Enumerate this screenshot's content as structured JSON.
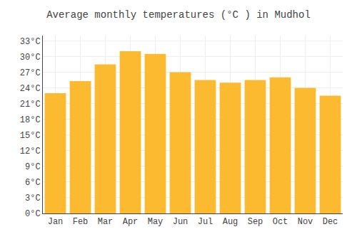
{
  "chart_data": {
    "type": "bar",
    "title": "Average monthly temperatures (°C ) in Mudhol",
    "categories": [
      "Jan",
      "Feb",
      "Mar",
      "Apr",
      "May",
      "Jun",
      "Jul",
      "Aug",
      "Sep",
      "Oct",
      "Nov",
      "Dec"
    ],
    "values": [
      23.0,
      25.3,
      28.5,
      31.0,
      30.5,
      27.0,
      25.5,
      25.0,
      25.5,
      26.0,
      24.0,
      22.5
    ],
    "color": "#FCBA30",
    "ylim": [
      0,
      34
    ],
    "yticks": [
      {
        "value": 0,
        "label": "0°C"
      },
      {
        "value": 3,
        "label": "3°C"
      },
      {
        "value": 6,
        "label": "6°C"
      },
      {
        "value": 9,
        "label": "9°C"
      },
      {
        "value": 12,
        "label": "12°C"
      },
      {
        "value": 15,
        "label": "15°C"
      },
      {
        "value": 18,
        "label": "18°C"
      },
      {
        "value": 21,
        "label": "21°C"
      },
      {
        "value": 24,
        "label": "24°C"
      },
      {
        "value": 27,
        "label": "27°C"
      },
      {
        "value": 30,
        "label": "30°C"
      },
      {
        "value": 33,
        "label": "33°C"
      }
    ],
    "grid": true
  }
}
